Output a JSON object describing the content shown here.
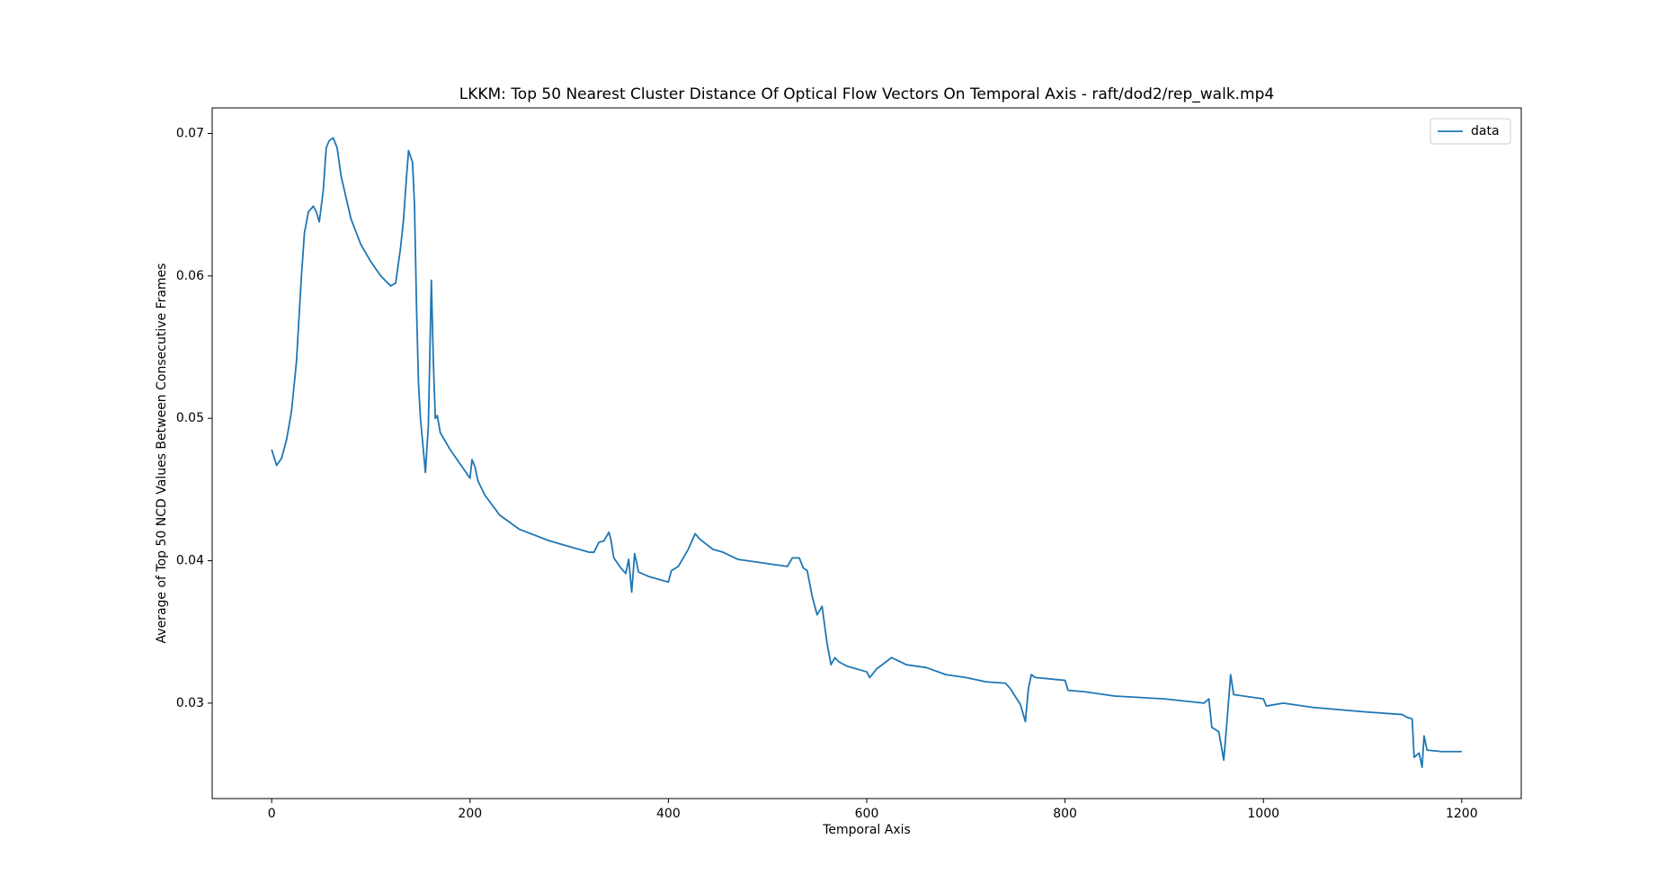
{
  "chart_data": {
    "type": "line",
    "title": "LKKM: Top 50 Nearest Cluster Distance Of Optical Flow Vectors On Temporal Axis - raft/dod2/rep_walk.mp4",
    "xlabel": "Temporal Axis",
    "ylabel": "Average of Top 50 NCD Values Between Consecutive Frames",
    "x": [
      0,
      5,
      10,
      15,
      20,
      25,
      30,
      33,
      37,
      42,
      45,
      48,
      52,
      55,
      58,
      62,
      66,
      70,
      75,
      80,
      90,
      100,
      110,
      120,
      125,
      130,
      133,
      136,
      138,
      142,
      144,
      146,
      148,
      150,
      152,
      155,
      158,
      161,
      163,
      165,
      167,
      170,
      180,
      190,
      200,
      202,
      205,
      208,
      215,
      230,
      250,
      280,
      300,
      320,
      325,
      330,
      335,
      340,
      342,
      345,
      352,
      357,
      360,
      363,
      366,
      370,
      380,
      400,
      403,
      410,
      420,
      427,
      432,
      445,
      455,
      470,
      500,
      520,
      525,
      532,
      536,
      540,
      545,
      550,
      555,
      560,
      564,
      568,
      572,
      580,
      600,
      603,
      610,
      625,
      640,
      660,
      680,
      700,
      720,
      740,
      745,
      755,
      760,
      763,
      766,
      770,
      800,
      803,
      820,
      850,
      900,
      940,
      945,
      948,
      955,
      960,
      963,
      967,
      970,
      1000,
      1003,
      1020,
      1050,
      1100,
      1140,
      1145,
      1150,
      1152,
      1157,
      1160,
      1162,
      1165,
      1180,
      1200
    ],
    "series": [
      {
        "name": "data",
        "color": "#1f77b4",
        "values": [
          0.0478,
          0.0467,
          0.0472,
          0.0485,
          0.0505,
          0.054,
          0.06,
          0.063,
          0.0645,
          0.0649,
          0.0645,
          0.0638,
          0.066,
          0.069,
          0.0695,
          0.0697,
          0.069,
          0.067,
          0.0655,
          0.064,
          0.0622,
          0.061,
          0.06,
          0.0593,
          0.0595,
          0.062,
          0.064,
          0.067,
          0.0688,
          0.068,
          0.065,
          0.058,
          0.0525,
          0.05,
          0.0485,
          0.0462,
          0.0495,
          0.0597,
          0.054,
          0.05,
          0.0502,
          0.049,
          0.0478,
          0.0468,
          0.0458,
          0.0471,
          0.0466,
          0.0456,
          0.0446,
          0.0432,
          0.0422,
          0.0414,
          0.041,
          0.0406,
          0.0406,
          0.0413,
          0.0414,
          0.042,
          0.0415,
          0.0402,
          0.0395,
          0.0391,
          0.0401,
          0.0378,
          0.0405,
          0.0392,
          0.0389,
          0.0385,
          0.0393,
          0.0396,
          0.0408,
          0.0419,
          0.0415,
          0.0408,
          0.0406,
          0.0401,
          0.0398,
          0.0396,
          0.0402,
          0.0402,
          0.0395,
          0.0393,
          0.0375,
          0.0362,
          0.0368,
          0.0342,
          0.0327,
          0.0332,
          0.0329,
          0.0326,
          0.0322,
          0.0318,
          0.0324,
          0.0332,
          0.0327,
          0.0325,
          0.032,
          0.0318,
          0.0315,
          0.0314,
          0.031,
          0.0299,
          0.0287,
          0.031,
          0.032,
          0.0318,
          0.0316,
          0.0309,
          0.0308,
          0.0305,
          0.0303,
          0.03,
          0.0303,
          0.0283,
          0.028,
          0.026,
          0.0285,
          0.032,
          0.0306,
          0.0303,
          0.0298,
          0.03,
          0.0297,
          0.0294,
          0.0292,
          0.029,
          0.0289,
          0.0262,
          0.0265,
          0.0255,
          0.0277,
          0.0267,
          0.0266,
          0.0266
        ]
      }
    ],
    "xlim": [
      -60,
      1260
    ],
    "ylim": [
      0.0233,
      0.0718
    ],
    "xticks": [
      0,
      200,
      400,
      600,
      800,
      1000,
      1200
    ],
    "yticks": [
      0.03,
      0.04,
      0.05,
      0.06,
      0.07
    ],
    "legend": "upper right"
  }
}
